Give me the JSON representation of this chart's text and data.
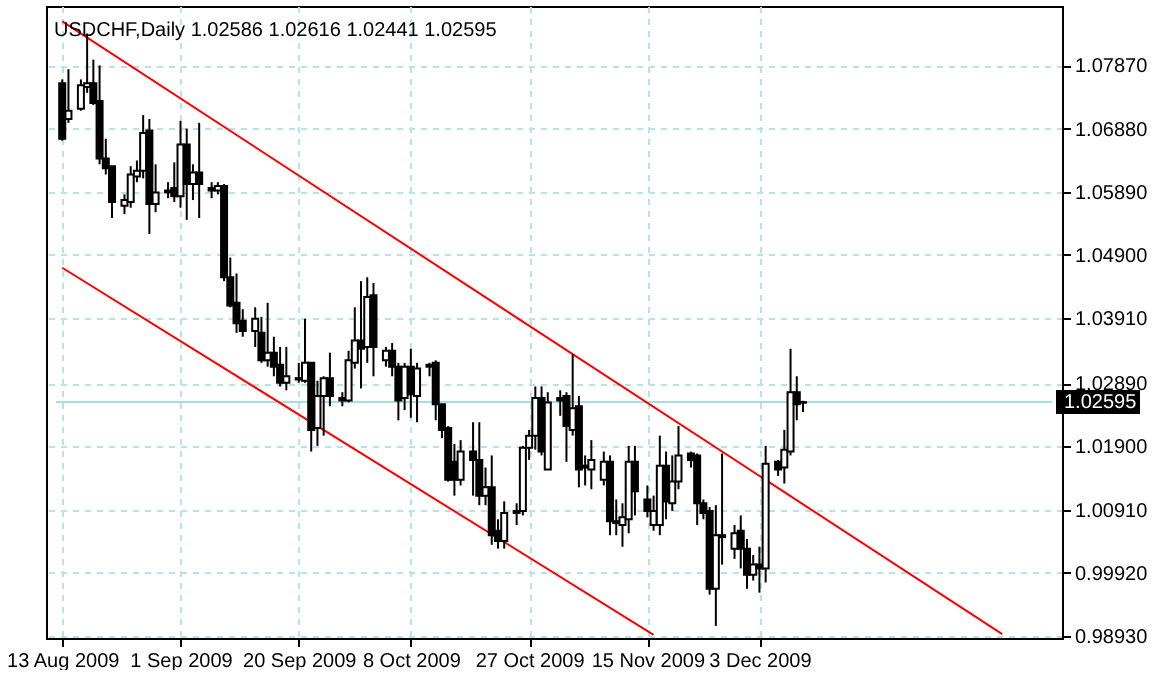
{
  "chart_data": {
    "type": "candlestick",
    "title": "USDCHF,Daily  1.02586 1.02616 1.02441 1.02595",
    "color": "#000000",
    "x": [
      "2009-08-13",
      "2009-08-14",
      "2009-08-16",
      "2009-08-17",
      "2009-08-18",
      "2009-08-19",
      "2009-08-20",
      "2009-08-21",
      "2009-08-23",
      "2009-08-24",
      "2009-08-25",
      "2009-08-26",
      "2009-08-27",
      "2009-08-28",
      "2009-08-30",
      "2009-08-31",
      "2009-09-01",
      "2009-09-02",
      "2009-09-03",
      "2009-09-04",
      "2009-09-06",
      "2009-09-07",
      "2009-09-08",
      "2009-09-09",
      "2009-09-10",
      "2009-09-11",
      "2009-09-13",
      "2009-09-14",
      "2009-09-15",
      "2009-09-16",
      "2009-09-17",
      "2009-09-18",
      "2009-09-20",
      "2009-09-21",
      "2009-09-22",
      "2009-09-23",
      "2009-09-24",
      "2009-09-25",
      "2009-09-27",
      "2009-09-28",
      "2009-09-29",
      "2009-09-30",
      "2009-10-01",
      "2009-10-02",
      "2009-10-04",
      "2009-10-05",
      "2009-10-06",
      "2009-10-07",
      "2009-10-08",
      "2009-10-09",
      "2009-10-11",
      "2009-10-12",
      "2009-10-13",
      "2009-10-14",
      "2009-10-15",
      "2009-10-16",
      "2009-10-18",
      "2009-10-19",
      "2009-10-20",
      "2009-10-21",
      "2009-10-22",
      "2009-10-23",
      "2009-10-25",
      "2009-10-26",
      "2009-10-27",
      "2009-10-28",
      "2009-10-29",
      "2009-10-30",
      "2009-11-01",
      "2009-11-02",
      "2009-11-03",
      "2009-11-04",
      "2009-11-05",
      "2009-11-06",
      "2009-11-08",
      "2009-11-09",
      "2009-11-10",
      "2009-11-11",
      "2009-11-12",
      "2009-11-13",
      "2009-11-15",
      "2009-11-16",
      "2009-11-17",
      "2009-11-18",
      "2009-11-19",
      "2009-11-20",
      "2009-11-22",
      "2009-11-23",
      "2009-11-24",
      "2009-11-25",
      "2009-11-26",
      "2009-11-27",
      "2009-11-29",
      "2009-11-30",
      "2009-12-01",
      "2009-12-02",
      "2009-12-03",
      "2009-12-04",
      "2009-12-06",
      "2009-12-07",
      "2009-12-08",
      "2009-12-09",
      "2009-12-10"
    ],
    "ohlc": [
      [
        1.0759,
        1.0765,
        1.0669,
        1.0672
      ],
      [
        1.0703,
        1.0781,
        1.0697,
        1.0716
      ],
      [
        1.0719,
        1.0765,
        1.0716,
        1.0756
      ],
      [
        1.0753,
        1.0837,
        1.0744,
        1.0759
      ],
      [
        1.0759,
        1.0796,
        1.0725,
        1.0728
      ],
      [
        1.0731,
        1.0787,
        1.0632,
        1.0641
      ],
      [
        1.0641,
        1.0672,
        1.0616,
        1.0626
      ],
      [
        1.0629,
        1.0629,
        1.0548,
        1.0573
      ],
      [
        1.0567,
        1.0585,
        1.0554,
        1.0576
      ],
      [
        1.0573,
        1.0629,
        1.0564,
        1.0616
      ],
      [
        1.0613,
        1.0638,
        1.0604,
        1.0622
      ],
      [
        1.0622,
        1.0709,
        1.061,
        1.0681
      ],
      [
        1.0685,
        1.0703,
        1.0523,
        1.057
      ],
      [
        1.057,
        1.0632,
        1.0557,
        1.0588
      ],
      [
        1.0591,
        1.0604,
        1.0579,
        1.0588
      ],
      [
        1.0595,
        1.0635,
        1.0573,
        1.0582
      ],
      [
        1.0582,
        1.07,
        1.0564,
        1.0663
      ],
      [
        1.0663,
        1.0688,
        1.0545,
        1.0601
      ],
      [
        1.0601,
        1.0632,
        1.0576,
        1.0619
      ],
      [
        1.0619,
        1.0697,
        1.0548,
        1.0601
      ],
      [
        1.0595,
        1.0604,
        1.0579,
        1.0591
      ],
      [
        1.0591,
        1.0604,
        1.0585,
        1.0598
      ],
      [
        1.0598,
        1.0601,
        1.0449,
        1.0455
      ],
      [
        1.0455,
        1.0486,
        1.0408,
        1.0411
      ],
      [
        1.0415,
        1.0461,
        1.0368,
        1.0383
      ],
      [
        1.0387,
        1.0405,
        1.0362,
        1.0371
      ],
      [
        1.0371,
        1.0408,
        1.0346,
        1.039
      ],
      [
        1.0368,
        1.0393,
        1.0321,
        1.0325
      ],
      [
        1.0325,
        1.0415,
        1.0315,
        1.0337
      ],
      [
        1.0337,
        1.0362,
        1.03,
        1.0315
      ],
      [
        1.0318,
        1.0346,
        1.0284,
        1.029
      ],
      [
        1.029,
        1.0346,
        1.0278,
        1.03
      ],
      [
        1.0297,
        1.0321,
        1.029,
        1.0295
      ],
      [
        1.0293,
        1.039,
        1.029,
        1.0321
      ],
      [
        1.0321,
        1.0321,
        1.0182,
        1.0216
      ],
      [
        1.0219,
        1.0293,
        1.0191,
        1.0269
      ],
      [
        1.0269,
        1.03,
        1.0207,
        1.0297
      ],
      [
        1.0297,
        1.0337,
        1.0253,
        1.0269
      ],
      [
        1.0266,
        1.0275,
        1.0253,
        1.0262
      ],
      [
        1.0262,
        1.034,
        1.0259,
        1.0325
      ],
      [
        1.0321,
        1.0408,
        1.0312,
        1.0356
      ],
      [
        1.0356,
        1.0449,
        1.0281,
        1.0343
      ],
      [
        1.0346,
        1.0455,
        1.0321,
        1.0424
      ],
      [
        1.0427,
        1.0446,
        1.03,
        1.0346
      ],
      [
        1.0325,
        1.0346,
        1.0315,
        1.034
      ],
      [
        1.034,
        1.0352,
        1.03,
        1.0315
      ],
      [
        1.0315,
        1.0321,
        1.0231,
        1.0262
      ],
      [
        1.0266,
        1.0321,
        1.0247,
        1.0315
      ],
      [
        1.0315,
        1.0343,
        1.0235,
        1.0272
      ],
      [
        1.0269,
        1.0321,
        1.0228,
        1.0312
      ],
      [
        1.0315,
        1.0321,
        1.03,
        1.0318
      ],
      [
        1.0321,
        1.0325,
        1.0231,
        1.0256
      ],
      [
        1.0256,
        1.0256,
        1.0203,
        1.0216
      ],
      [
        1.0219,
        1.0222,
        1.0135,
        1.0138
      ],
      [
        1.0166,
        1.0194,
        1.0113,
        1.0138
      ],
      [
        1.0138,
        1.02,
        1.0129,
        1.0182
      ],
      [
        1.0182,
        1.0228,
        1.0113,
        1.0169
      ],
      [
        1.0169,
        1.0228,
        1.0098,
        1.0113
      ],
      [
        1.0113,
        1.0157,
        1.0098,
        1.0126
      ],
      [
        1.0126,
        1.0176,
        1.0036,
        1.0051
      ],
      [
        1.0058,
        1.0076,
        1.003,
        1.0042
      ],
      [
        1.0042,
        1.0104,
        1.003,
        1.0086
      ],
      [
        1.0086,
        1.0101,
        1.0067,
        1.0089
      ],
      [
        1.0089,
        1.0191,
        1.0082,
        1.0188
      ],
      [
        1.0188,
        1.0216,
        1.0169,
        1.0207
      ],
      [
        1.0207,
        1.0284,
        1.0185,
        1.0266
      ],
      [
        1.0266,
        1.0284,
        1.0176,
        1.0182
      ],
      [
        1.0154,
        1.0275,
        1.0154,
        1.0259
      ],
      [
        1.0266,
        1.0278,
        1.0238,
        1.0262
      ],
      [
        1.0269,
        1.0275,
        1.0166,
        1.0222
      ],
      [
        1.0216,
        1.0334,
        1.0207,
        1.025
      ],
      [
        1.0253,
        1.0269,
        1.0126,
        1.0154
      ],
      [
        1.016,
        1.0176,
        1.0129,
        1.0157
      ],
      [
        1.0154,
        1.02,
        1.0123,
        1.0169
      ],
      [
        1.0138,
        1.0182,
        1.0129,
        1.0166
      ],
      [
        1.0166,
        1.0176,
        1.0051,
        1.0073
      ],
      [
        1.0073,
        1.0107,
        1.0051,
        1.007
      ],
      [
        1.0067,
        1.0101,
        1.0033,
        1.0079
      ],
      [
        1.0076,
        1.0191,
        1.0054,
        1.0166
      ],
      [
        1.0166,
        1.0191,
        1.0082,
        1.012
      ],
      [
        1.0107,
        1.0129,
        1.0079,
        1.0089
      ],
      [
        1.0067,
        1.0113,
        1.0058,
        1.0089
      ],
      [
        1.0067,
        1.0207,
        1.0051,
        1.016
      ],
      [
        1.016,
        1.0182,
        1.0076,
        1.0104
      ],
      [
        1.0101,
        1.0176,
        1.0089,
        1.0135
      ],
      [
        1.0135,
        1.0222,
        1.0123,
        1.0176
      ],
      [
        1.0179,
        1.0182,
        1.0157,
        1.0169
      ],
      [
        1.0176,
        1.0179,
        1.0067,
        1.0101
      ],
      [
        1.0101,
        1.0107,
        1.0076,
        1.0086
      ],
      [
        1.0089,
        1.0095,
        0.9958,
        0.9967
      ],
      [
        0.9967,
        1.0098,
        0.9909,
        1.0051
      ],
      [
        1.0048,
        1.0179,
        1.0005,
        1.0051
      ],
      [
        1.003,
        1.0067,
        1.0014,
        1.0054
      ],
      [
        1.0058,
        1.0082,
        0.9999,
        1.003
      ],
      [
        1.003,
        1.0045,
        0.9967,
        0.9989
      ],
      [
        0.9989,
        1.002,
        0.998,
        1.0005
      ],
      [
        1.0005,
        1.0033,
        0.9961,
        0.9999
      ],
      [
        0.9999,
        1.0191,
        0.9977,
        1.0163
      ],
      [
        1.0166,
        1.0169,
        1.0144,
        1.0154
      ],
      [
        1.0157,
        1.0216,
        1.0132,
        1.0185
      ],
      [
        1.0182,
        1.0343,
        1.0176,
        1.0275
      ],
      [
        1.0275,
        1.03,
        1.0231,
        1.0256
      ],
      [
        1.02586,
        1.02616,
        1.02441,
        1.02595
      ]
    ],
    "series": [
      {
        "type": "line",
        "color": "#ff0000",
        "x": [
          "2009-08-13",
          "2010-01-11"
        ],
        "values": [
          1.0856,
          0.9896
        ]
      },
      {
        "type": "line",
        "color": "#ff0000",
        "x": [
          "2009-08-13",
          "2009-11-16"
        ],
        "values": [
          1.047,
          0.9895
        ]
      }
    ],
    "xlim": [
      "2009-08-12",
      "2010-01-19"
    ],
    "xticks": [
      {
        "value": "2009-08-13",
        "label": "13 Aug 2009"
      },
      {
        "value": "2009-09-01",
        "label": "1 Sep 2009"
      },
      {
        "value": "2009-09-20",
        "label": "20 Sep 2009"
      },
      {
        "value": "2009-10-08",
        "label": "8 Oct 2009"
      },
      {
        "value": "2009-10-27",
        "label": "27 Oct 2009"
      },
      {
        "value": "2009-11-15",
        "label": "15 Nov 2009"
      },
      {
        "value": "2009-12-03",
        "label": "3 Dec 2009"
      }
    ],
    "ylim": [
      0.989,
      1.088
    ],
    "yticks": [
      {
        "value": 0.9893,
        "label": "0.98930"
      },
      {
        "value": 0.9992,
        "label": "0.99920"
      },
      {
        "value": 1.0091,
        "label": "1.00910"
      },
      {
        "value": 1.019,
        "label": "1.01900"
      },
      {
        "value": 1.0289,
        "label": "1.02890"
      },
      {
        "value": 1.0391,
        "label": "1.03910"
      },
      {
        "value": 1.049,
        "label": "1.04900"
      },
      {
        "value": 1.0589,
        "label": "1.05890"
      },
      {
        "value": 1.0688,
        "label": "1.06880"
      },
      {
        "value": 1.0787,
        "label": "1.07870"
      }
    ],
    "ref_lines": [
      {
        "axis": "y",
        "value": 1.02595,
        "label": "1.02595",
        "color": "#a8dede"
      }
    ],
    "grid": true
  }
}
